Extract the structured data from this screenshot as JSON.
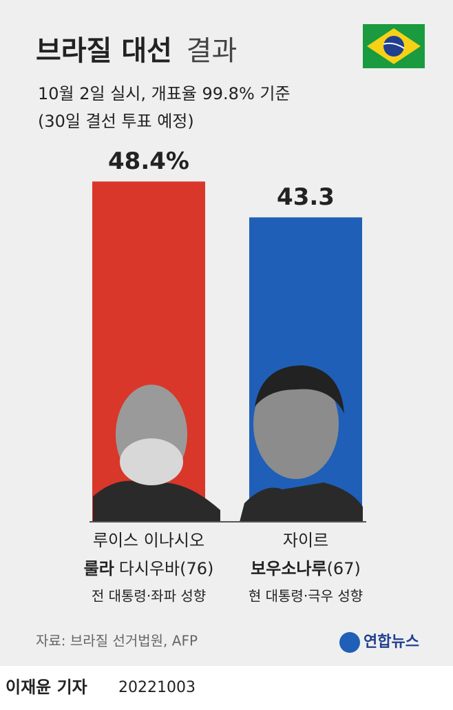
{
  "chart_data": {
    "type": "bar",
    "title_bold": "브라질 대선",
    "title_light": "결과",
    "subtitle_lines": [
      "10월 2일 실시, 개표율 99.8% 기준",
      "(30일 결선 투표 예정)"
    ],
    "values": [
      48.4,
      43.3
    ],
    "value_labels": [
      "48.4%",
      "43.3"
    ],
    "colors": [
      "#d9372a",
      "#1f5fb8"
    ],
    "ylim": [
      0,
      50
    ],
    "candidates": [
      {
        "line1": "루이스 이나시오",
        "name_bold": "룰라",
        "name_rest": "다시우바",
        "age": "(76)",
        "desc": "전 대통령·좌파 성향"
      },
      {
        "line1": "자이르",
        "name_bold": "보우소나루",
        "name_rest": null,
        "age": "(67)",
        "desc": "현 대통령·극우 성향"
      }
    ],
    "source": "자료: 브라질 선거법원, AFP",
    "logo": "연합뉴스"
  },
  "byline": {
    "author": "이재윤 기자",
    "date": "20221003"
  }
}
